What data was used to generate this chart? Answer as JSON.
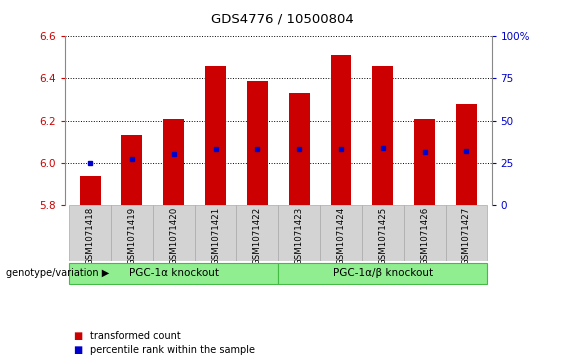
{
  "title": "GDS4776 / 10500804",
  "samples": [
    "GSM1071418",
    "GSM1071419",
    "GSM1071420",
    "GSM1071421",
    "GSM1071422",
    "GSM1071423",
    "GSM1071424",
    "GSM1071425",
    "GSM1071426",
    "GSM1071427"
  ],
  "bar_bottom": 5.8,
  "bar_tops": [
    5.94,
    6.13,
    6.21,
    6.46,
    6.39,
    6.33,
    6.51,
    6.46,
    6.21,
    6.28
  ],
  "percentile_values": [
    6.0,
    6.02,
    6.04,
    6.065,
    6.065,
    6.065,
    6.065,
    6.07,
    6.05,
    6.055
  ],
  "ylim_left": [
    5.8,
    6.6
  ],
  "ylim_right": [
    0,
    100
  ],
  "yticks_left": [
    5.8,
    6.0,
    6.2,
    6.4,
    6.6
  ],
  "yticks_right": [
    0,
    25,
    50,
    75,
    100
  ],
  "bar_color": "#cc0000",
  "percentile_color": "#0000cc",
  "group1_label": "PGC-1α knockout",
  "group2_label": "PGC-1α/β knockout",
  "group_color": "#90ee90",
  "group_edge_color": "#44bb44",
  "group_label_row": "genotype/variation",
  "legend_bar_label": "transformed count",
  "legend_pct_label": "percentile rank within the sample",
  "left_tick_color": "#cc0000",
  "right_tick_color": "#0000cc",
  "plot_bg": "#ffffff",
  "label_area_color": "#d3d3d3",
  "label_edge_color": "#aaaaaa"
}
